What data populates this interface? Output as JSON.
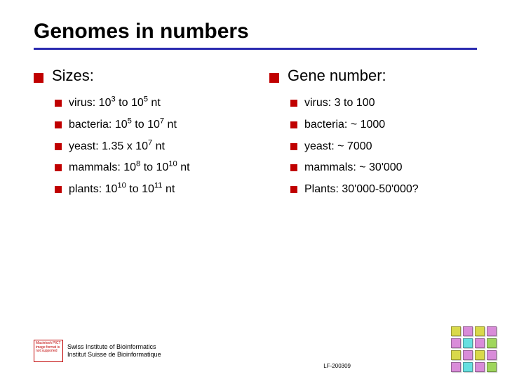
{
  "title": "Genomes in numbers",
  "left": {
    "heading": "Sizes:",
    "items": [
      "virus: 10<sup>3</sup> to 10<sup>5</sup> nt",
      "bacteria: 10<sup>5</sup> to 10<sup>7</sup> nt",
      "yeast: 1.35 x 10<sup>7</sup> nt",
      "mammals: 10<sup>8</sup> to 10<sup>10</sup> nt",
      "plants: 10<sup>10</sup> to 10<sup>11</sup> nt"
    ]
  },
  "right": {
    "heading": "Gene number:",
    "items": [
      "virus: 3 to 100",
      "bacteria: ~ 1000",
      "yeast: ~ 7000",
      "mammals: ~ 30'000",
      "Plants: 30'000-50'000?"
    ]
  },
  "footer": {
    "placeholder": "Macintosh PICT image format is not supported",
    "inst_line1": "Swiss Institute of Bioinformatics",
    "inst_line2": "Institut Suisse de Bioinformatique",
    "code": "LF-200309"
  },
  "palette": {
    "bullet": "#c00000",
    "divider": "#2b2bb0",
    "squares": [
      [
        "#d9d94a",
        "#d98cd9",
        "#d9d94a",
        "#d98cd9"
      ],
      [
        "#d98cd9",
        "#66e0e0",
        "#d98cd9",
        "#66e0e0"
      ],
      [
        "#d9d94a",
        "#d98cd9",
        "#d9d94a",
        "#d98cd9"
      ],
      [
        "#d98cd9",
        "#9fd65c",
        "#d98cd9",
        "#9fd65c"
      ]
    ]
  }
}
